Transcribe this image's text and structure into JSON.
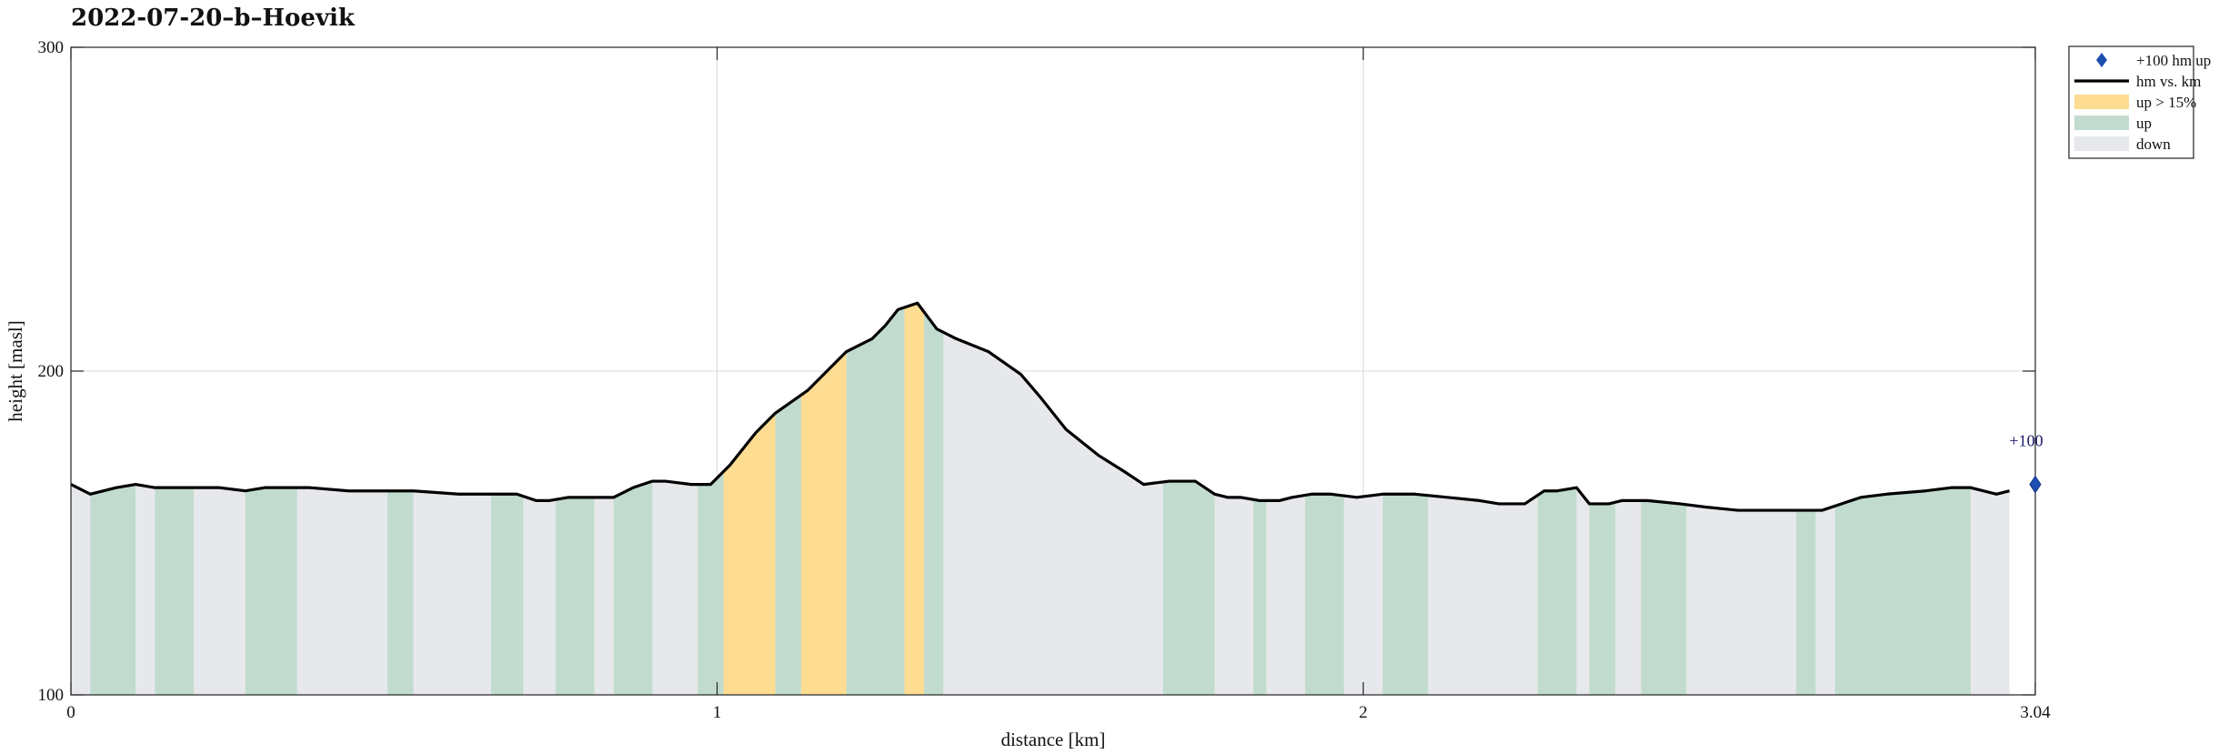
{
  "chart_data": {
    "type": "area",
    "title": "2022-07-20–b–Hoevik",
    "xlabel": "distance [km]",
    "ylabel": "height [masl]",
    "xlim": [
      0,
      3.04
    ],
    "ylim": [
      100,
      300
    ],
    "xticks": [
      "0",
      "1",
      "2",
      "3.04"
    ],
    "yticks": [
      "100",
      "200",
      "300"
    ],
    "grid": true,
    "legend_position": "outside-top-right",
    "legend": [
      {
        "label": "+100 hm up",
        "kind": "marker",
        "color": "#1f4fb0"
      },
      {
        "label": "hm vs. km",
        "kind": "line",
        "color": "#000000"
      },
      {
        "label": "up > 15%",
        "kind": "patch",
        "color": "#fedc92"
      },
      {
        "label": "up",
        "kind": "patch",
        "color": "#c1dcce"
      },
      {
        "label": "down",
        "kind": "patch",
        "color": "#e7e8eb"
      }
    ],
    "colors": {
      "steep": "#fedc92",
      "up": "#c1dcce",
      "down": "#e7e8eb",
      "line": "#000000",
      "marker": "#1f4fb0"
    },
    "series": [
      {
        "x": [
          0,
          0.03,
          0.07,
          0.1,
          0.13,
          0.19,
          0.23,
          0.27,
          0.3,
          0.37,
          0.43,
          0.53,
          0.6,
          0.66,
          0.69,
          0.72,
          0.74,
          0.77,
          0.8,
          0.84,
          0.87,
          0.9,
          0.92,
          0.96,
          0.99,
          1.02,
          1.06,
          1.09,
          1.14,
          1.17,
          1.2,
          1.24,
          1.26,
          1.28,
          1.31,
          1.34,
          1.37,
          1.42,
          1.47,
          1.5,
          1.54,
          1.59,
          1.63,
          1.66,
          1.7,
          1.74,
          1.77,
          1.79,
          1.81,
          1.84,
          1.87,
          1.89,
          1.92,
          1.95,
          1.99,
          2.03,
          2.08,
          2.13,
          2.18,
          2.21,
          2.25,
          2.28,
          2.3,
          2.33,
          2.35,
          2.38,
          2.4,
          2.44,
          2.49,
          2.53,
          2.58,
          2.64,
          2.71,
          2.74,
          2.77,
          2.81,
          2.87,
          2.91,
          2.94,
          2.98,
          3.0
        ],
        "y": [
          165,
          162,
          164,
          165,
          164,
          164,
          164,
          163,
          164,
          164,
          163,
          163,
          162,
          162,
          162,
          160,
          160,
          161,
          161,
          161,
          164,
          166,
          166,
          165,
          165,
          171,
          181,
          187,
          194,
          200,
          206,
          210,
          214,
          219,
          221,
          213,
          210,
          206,
          199,
          192,
          182,
          174,
          169,
          165,
          166,
          166,
          162,
          161,
          161,
          160,
          160,
          161,
          162,
          162,
          161,
          162,
          162,
          161,
          160,
          159,
          159,
          163,
          163,
          164,
          159,
          159,
          160,
          160,
          159,
          158,
          157,
          157,
          157,
          159,
          161,
          162,
          163,
          164,
          164,
          162,
          163
        ]
      }
    ],
    "up_segments": [
      [
        0.03,
        0.1
      ],
      [
        0.13,
        0.19
      ],
      [
        0.27,
        0.35
      ],
      [
        0.49,
        0.53
      ],
      [
        0.65,
        0.7
      ],
      [
        0.75,
        0.81
      ],
      [
        0.84,
        0.9
      ],
      [
        0.97,
        1.01
      ],
      [
        1.09,
        1.13
      ],
      [
        1.2,
        1.29
      ],
      [
        1.32,
        1.35
      ],
      [
        1.69,
        1.77
      ],
      [
        1.83,
        1.85
      ],
      [
        1.91,
        1.97
      ],
      [
        2.03,
        2.1
      ],
      [
        2.27,
        2.33
      ],
      [
        2.35,
        2.39
      ],
      [
        2.43,
        2.5
      ],
      [
        2.67,
        2.7
      ],
      [
        2.73,
        2.94
      ]
    ],
    "steep_segments": [
      [
        1.01,
        1.09
      ],
      [
        1.13,
        1.2
      ],
      [
        1.29,
        1.32
      ]
    ],
    "markers": [
      {
        "x": 3.04,
        "y": 165,
        "label": "+100"
      }
    ]
  }
}
